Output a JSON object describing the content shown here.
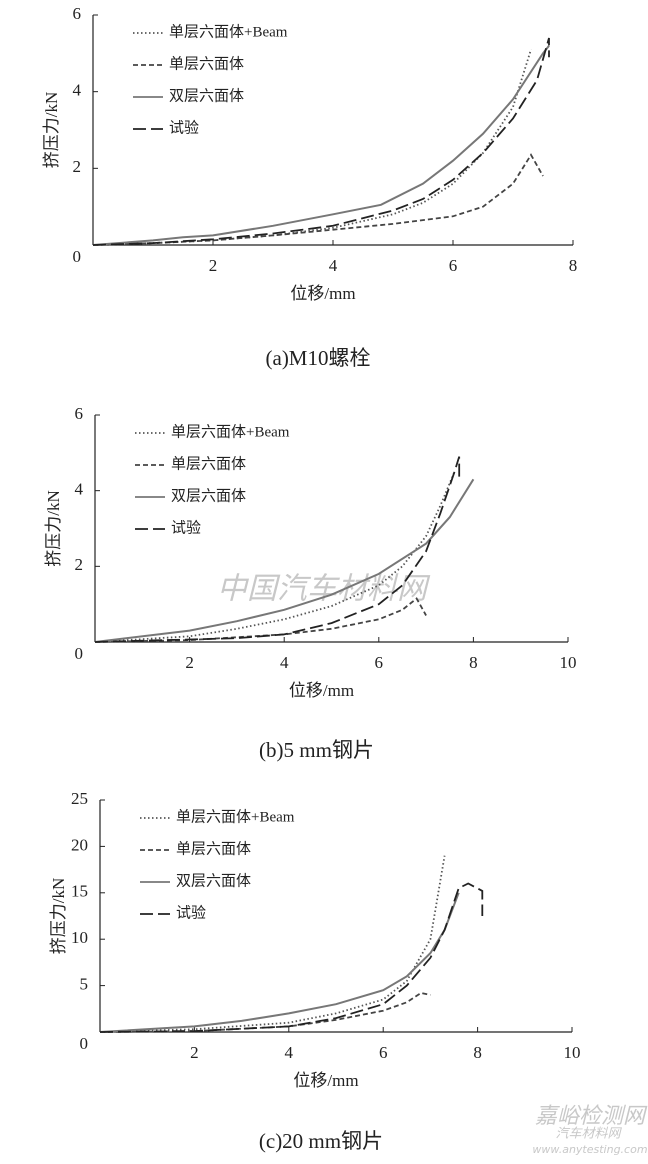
{
  "chart_data": [
    {
      "type": "line",
      "caption": "(a)M10螺栓",
      "xlabel": "位移/mm",
      "ylabel": "挤压力/kN",
      "xlim": [
        0,
        8
      ],
      "xticks": [
        2,
        4,
        6,
        8
      ],
      "ylim": [
        0,
        6
      ],
      "yticks": [
        0,
        2,
        4,
        6
      ],
      "series": [
        {
          "name": "单层六面体+Beam",
          "color": "#555555",
          "style": "dotted",
          "x": [
            0,
            1,
            2,
            3,
            4,
            5,
            5.5,
            6,
            6.5,
            7,
            7.3
          ],
          "values": [
            0,
            0.05,
            0.12,
            0.25,
            0.45,
            0.8,
            1.1,
            1.6,
            2.4,
            3.6,
            5.1
          ]
        },
        {
          "name": "单层六面体",
          "color": "#444444",
          "style": "dashed",
          "x": [
            0,
            1,
            2,
            3,
            4,
            5,
            6,
            6.5,
            7,
            7.3,
            7.5
          ],
          "values": [
            0,
            0.05,
            0.12,
            0.25,
            0.4,
            0.55,
            0.75,
            1.0,
            1.6,
            2.35,
            1.8
          ]
        },
        {
          "name": "双层六面体",
          "color": "#777777",
          "style": "solid",
          "x": [
            0,
            1,
            1.5,
            2,
            3,
            4,
            4.8,
            5.5,
            6,
            6.5,
            7,
            7.5,
            7.6
          ],
          "values": [
            0,
            0.12,
            0.2,
            0.25,
            0.5,
            0.8,
            1.05,
            1.6,
            2.2,
            2.9,
            3.8,
            5.0,
            5.2
          ]
        },
        {
          "name": "试验",
          "color": "#222222",
          "style": "longdash",
          "x": [
            0,
            1,
            2,
            3,
            4,
            5,
            5.5,
            6,
            6.5,
            7,
            7.4,
            7.6,
            7.6
          ],
          "values": [
            0,
            0.05,
            0.15,
            0.3,
            0.5,
            0.9,
            1.2,
            1.7,
            2.4,
            3.3,
            4.3,
            5.4,
            4.9
          ]
        }
      ]
    },
    {
      "type": "line",
      "caption": "(b)5 mm钢片",
      "xlabel": "位移/mm",
      "ylabel": "挤压力/kN",
      "xlim": [
        0,
        10
      ],
      "xticks": [
        2,
        4,
        6,
        8,
        10
      ],
      "ylim": [
        0,
        6
      ],
      "yticks": [
        0,
        2,
        4,
        6
      ],
      "series": [
        {
          "name": "单层六面体+Beam",
          "color": "#555555",
          "style": "dotted",
          "x": [
            0,
            2,
            3,
            4,
            5,
            6,
            6.5,
            7,
            7.3,
            7.6
          ],
          "values": [
            0,
            0.15,
            0.35,
            0.6,
            0.95,
            1.5,
            2.0,
            2.8,
            3.6,
            4.5
          ]
        },
        {
          "name": "单层六面体",
          "color": "#444444",
          "style": "dashed",
          "x": [
            0,
            2,
            4,
            5,
            6,
            6.5,
            6.8,
            7
          ],
          "values": [
            0,
            0.05,
            0.2,
            0.35,
            0.6,
            0.85,
            1.15,
            0.7
          ]
        },
        {
          "name": "双层六面体",
          "color": "#777777",
          "style": "solid",
          "x": [
            0,
            2,
            3,
            4,
            5,
            6,
            7,
            7.5,
            8
          ],
          "values": [
            0,
            0.3,
            0.55,
            0.85,
            1.25,
            1.8,
            2.6,
            3.3,
            4.3
          ]
        },
        {
          "name": "试验",
          "color": "#222222",
          "style": "longdash",
          "x": [
            0,
            3,
            4,
            5,
            6,
            6.5,
            7,
            7.3,
            7.6,
            7.7,
            7.7
          ],
          "values": [
            0,
            0.1,
            0.2,
            0.5,
            1.0,
            1.5,
            2.4,
            3.4,
            4.5,
            4.9,
            4.3
          ]
        }
      ]
    },
    {
      "type": "line",
      "caption": "(c)20 mm钢片",
      "xlabel": "位移/mm",
      "ylabel": "挤压力/kN",
      "xlim": [
        0,
        10
      ],
      "xticks": [
        2,
        4,
        6,
        8,
        10
      ],
      "ylim": [
        0,
        25
      ],
      "yticks": [
        0,
        5,
        10,
        15,
        20,
        25
      ],
      "series": [
        {
          "name": "单层六面体+Beam",
          "color": "#555555",
          "style": "dotted",
          "x": [
            0,
            2,
            4,
            5,
            6,
            6.5,
            7,
            7.3
          ],
          "values": [
            0,
            0.3,
            1,
            2,
            3.5,
            5.5,
            10,
            19
          ]
        },
        {
          "name": "单层六面体",
          "color": "#444444",
          "style": "dashed",
          "x": [
            0,
            2,
            4,
            5,
            6,
            6.5,
            6.8,
            7
          ],
          "values": [
            0,
            0.1,
            0.6,
            1.3,
            2.3,
            3.2,
            4.2,
            4
          ]
        },
        {
          "name": "双层六面体",
          "color": "#777777",
          "style": "solid",
          "x": [
            0,
            2,
            3,
            4,
            5,
            6,
            6.5,
            7,
            7.3,
            7.6
          ],
          "values": [
            0,
            0.6,
            1.2,
            2,
            3,
            4.5,
            6,
            8.5,
            11,
            15
          ]
        },
        {
          "name": "试验",
          "color": "#222222",
          "style": "longdash",
          "x": [
            0,
            2,
            4,
            5,
            6,
            6.5,
            7,
            7.3,
            7.6,
            7.8,
            8.1,
            8.1
          ],
          "values": [
            0,
            0.1,
            0.6,
            1.5,
            3,
            5,
            8,
            11,
            15.5,
            16,
            15.2,
            12.5
          ]
        }
      ]
    }
  ],
  "watermarks": [
    "中国汽车材料网",
    "嘉峪检测网",
    "汽车材料网",
    "www.anytesting.com"
  ]
}
